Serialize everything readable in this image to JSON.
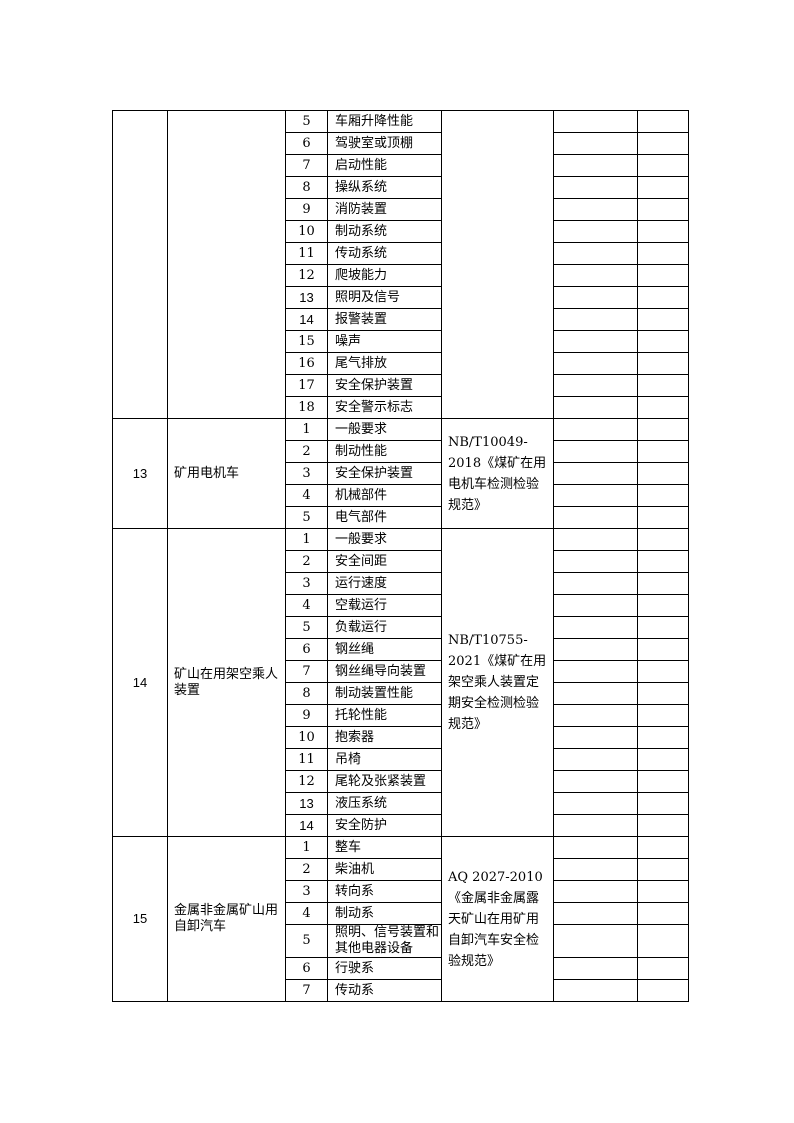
{
  "groups": [
    {
      "no": "",
      "name": "",
      "standard": "",
      "items": [
        "车厢升降性能",
        "驾驶室或顶棚",
        "启动性能",
        "操纵系统",
        "消防装置",
        "制动系统",
        "传动系统",
        "爬坡能力",
        "照明及信号",
        "报警装置",
        "噪声",
        "尾气排放",
        "安全保护装置",
        "安全警示标志"
      ],
      "start": 5
    },
    {
      "no": "13",
      "name": "矿用电机车",
      "standard": "NB/T10049-2018《煤矿在用电机车检测检验规范》",
      "items": [
        "一般要求",
        "制动性能",
        "安全保护装置",
        "机械部件",
        "电气部件"
      ],
      "start": 1
    },
    {
      "no": "14",
      "name": "矿山在用架空乘人装置",
      "standard": "NB/T10755-2021《煤矿在用架空乘人装置定期安全检测检验规范》",
      "items": [
        "一般要求",
        "安全间距",
        "运行速度",
        "空载运行",
        "负载运行",
        "钢丝绳",
        "钢丝绳导向装置",
        "制动装置性能",
        "托轮性能",
        "抱索器",
        "吊椅",
        "尾轮及张紧装置",
        "液压系统",
        "安全防护"
      ],
      "start": 1
    },
    {
      "no": "15",
      "name": "金属非金属矿山用自卸汽车",
      "standard": "AQ 2027-2010《金属非金属露天矿山在用矿用自卸汽车安全检验规范》",
      "items": [
        "整车",
        "柴油机",
        "转向系",
        "制动系",
        "照明、信号装置和其他电器设备",
        "行驶系",
        "传动系"
      ],
      "start": 1
    }
  ]
}
